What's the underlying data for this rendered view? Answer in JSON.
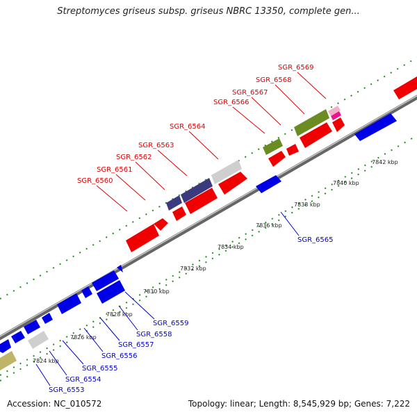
{
  "title": "Streptomyces griseus subsp. griseus NBRC 13350, complete gen...",
  "footer": {
    "accession": "Accession: NC_010572",
    "topology": "Topology: linear; Length: 8,545,929 bp; Genes: 7,222"
  },
  "colors": {
    "red": "#f00000",
    "blue": "#0000e6",
    "purple": "#3c3a7e",
    "olive": "#6b8c23",
    "grey": "#cfcfcf",
    "khaki": "#bfb56a",
    "pink": "#f0148c",
    "pink_light": "#f0b0c8",
    "top_label": "#e00000",
    "bottom_label": "#0000cc",
    "dots": "#1f8c1f"
  },
  "chart_data": {
    "type": "genome-map",
    "ticks": [
      {
        "label": "7824 kbp"
      },
      {
        "label": "7826 kbp"
      },
      {
        "label": "7828 kbp"
      },
      {
        "label": "7830 kbp"
      },
      {
        "label": "7832 kbp"
      },
      {
        "label": "7834 kbp"
      },
      {
        "label": "7836 kbp"
      },
      {
        "label": "7838 kbp"
      },
      {
        "label": "7840 kbp"
      },
      {
        "label": "7842 kbp"
      }
    ],
    "genes_top": [
      {
        "name": "SGR_6560"
      },
      {
        "name": "SGR_6561"
      },
      {
        "name": "SGR_6562"
      },
      {
        "name": "SGR_6563"
      },
      {
        "name": "SGR_6564"
      },
      {
        "name": "SGR_6566"
      },
      {
        "name": "SGR_6567"
      },
      {
        "name": "SGR_6568"
      },
      {
        "name": "SGR_6569"
      }
    ],
    "genes_bottom": [
      {
        "name": "SGR_6553"
      },
      {
        "name": "SGR_6554"
      },
      {
        "name": "SGR_6555"
      },
      {
        "name": "SGR_6556"
      },
      {
        "name": "SGR_6557"
      },
      {
        "name": "SGR_6558"
      },
      {
        "name": "SGR_6559"
      },
      {
        "name": "SGR_6565"
      }
    ]
  }
}
